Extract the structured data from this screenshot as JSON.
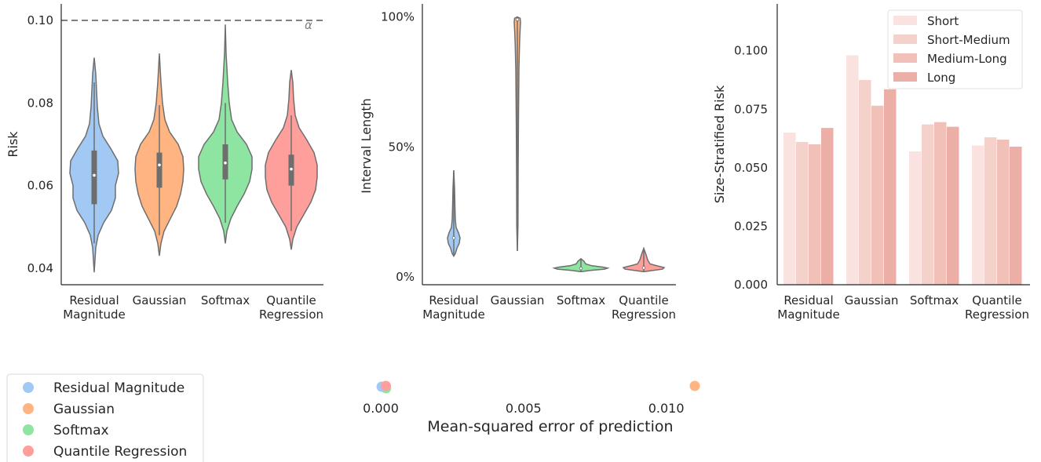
{
  "colors": {
    "residual": "#a1c9f4",
    "gaussian": "#ffb482",
    "softmax": "#8de5a1",
    "quantile": "#ff9f9b",
    "violin_edge": "#6e6e6e",
    "bars": [
      "#f9e2df",
      "#f5d1cc",
      "#f0c0b9",
      "#ebafa7"
    ]
  },
  "chart_data": [
    {
      "type": "violin",
      "ylabel": "Risk",
      "categories": [
        "Residual\nMagnitude",
        "Gaussian",
        "Softmax",
        "Quantile\nRegression"
      ],
      "ylim": [
        0.036,
        0.104
      ],
      "yticks": [
        "0.04",
        "0.06",
        "0.08",
        "0.10"
      ],
      "reference_line": {
        "value": 0.1,
        "label": "α"
      },
      "series": [
        {
          "category": "Residual Magnitude",
          "min": 0.039,
          "max": 0.091,
          "q1": 0.0555,
          "median": 0.0625,
          "q3": 0.0685,
          "whisker_low": 0.046,
          "whisker_high": 0.085
        },
        {
          "category": "Gaussian",
          "min": 0.043,
          "max": 0.092,
          "q1": 0.0595,
          "median": 0.065,
          "q3": 0.068,
          "whisker_low": 0.048,
          "whisker_high": 0.0795
        },
        {
          "category": "Softmax",
          "min": 0.046,
          "max": 0.099,
          "q1": 0.0615,
          "median": 0.0655,
          "q3": 0.07,
          "whisker_low": 0.051,
          "whisker_high": 0.08
        },
        {
          "category": "Quantile Regression",
          "min": 0.0445,
          "max": 0.088,
          "q1": 0.06,
          "median": 0.064,
          "q3": 0.0675,
          "whisker_low": 0.049,
          "whisker_high": 0.077
        }
      ]
    },
    {
      "type": "violin",
      "ylabel": "Interval Length",
      "categories": [
        "Residual\nMagnitude",
        "Gaussian",
        "Softmax",
        "Quantile\nRegression"
      ],
      "ylim": [
        -3,
        105
      ],
      "yticks": [
        "0%",
        "50%",
        "100%"
      ],
      "series": [
        {
          "category": "Residual Magnitude",
          "min": 8,
          "max": 41,
          "median": 15
        },
        {
          "category": "Gaussian",
          "min": 10,
          "max": 100,
          "median": 99
        },
        {
          "category": "Softmax",
          "min": 2,
          "max": 7,
          "median": 3.3
        },
        {
          "category": "Quantile Regression",
          "min": 2,
          "max": 11,
          "median": 3.5
        }
      ]
    },
    {
      "type": "bar",
      "ylabel": "Size-Stratified Risk",
      "categories": [
        "Residual\nMagnitude",
        "Gaussian",
        "Softmax",
        "Quantile\nRegression"
      ],
      "ylim": [
        0,
        0.12
      ],
      "yticks": [
        "0.000",
        "0.025",
        "0.050",
        "0.075",
        "0.100"
      ],
      "legend_position": "top-right",
      "series": [
        {
          "name": "Short",
          "values": [
            0.065,
            0.098,
            0.057,
            0.0595
          ]
        },
        {
          "name": "Short-Medium",
          "values": [
            0.061,
            0.0875,
            0.0685,
            0.063
          ]
        },
        {
          "name": "Medium-Long",
          "values": [
            0.06,
            0.0765,
            0.0695,
            0.062
          ]
        },
        {
          "name": "Long",
          "values": [
            0.067,
            0.0835,
            0.0675,
            0.059
          ]
        }
      ]
    },
    {
      "type": "scatter",
      "xlabel": "Mean-squared error of prediction",
      "xticks": [
        "0.000",
        "0.005",
        "0.010"
      ],
      "xlim": [
        0,
        0.011
      ],
      "points": [
        {
          "name": "Residual Magnitude",
          "x": 3e-05
        },
        {
          "name": "Gaussian",
          "x": 0.011
        },
        {
          "name": "Softmax",
          "x": 2e-05
        },
        {
          "name": "Quantile Regression",
          "x": 0.00018
        }
      ],
      "legend": [
        "Residual Magnitude",
        "Gaussian",
        "Softmax",
        "Quantile Regression"
      ]
    }
  ]
}
